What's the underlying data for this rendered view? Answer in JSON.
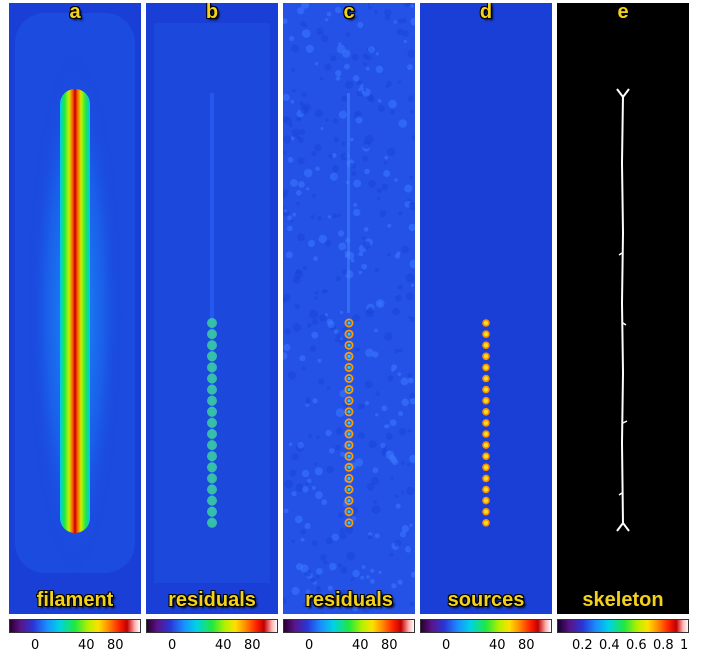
{
  "panels": [
    {
      "letter": "a",
      "name": "filament"
    },
    {
      "letter": "b",
      "name": "residuals"
    },
    {
      "letter": "c",
      "name": "residuals"
    },
    {
      "letter": "d",
      "name": "sources"
    },
    {
      "letter": "e",
      "name": "skeleton"
    }
  ],
  "colorbars": {
    "a": [
      "0",
      "40",
      "80"
    ],
    "b": [
      "0",
      "40",
      "80"
    ],
    "c": [
      "0",
      "40",
      "80"
    ],
    "d": [
      "0",
      "40",
      "80"
    ],
    "e": [
      "0.2",
      "0.4",
      "0.6",
      "0.8",
      "1"
    ]
  },
  "colors": {
    "background_blue": "#1a3fd6",
    "skeleton_background": "#000000",
    "label_yellow": "#f4d21b"
  }
}
